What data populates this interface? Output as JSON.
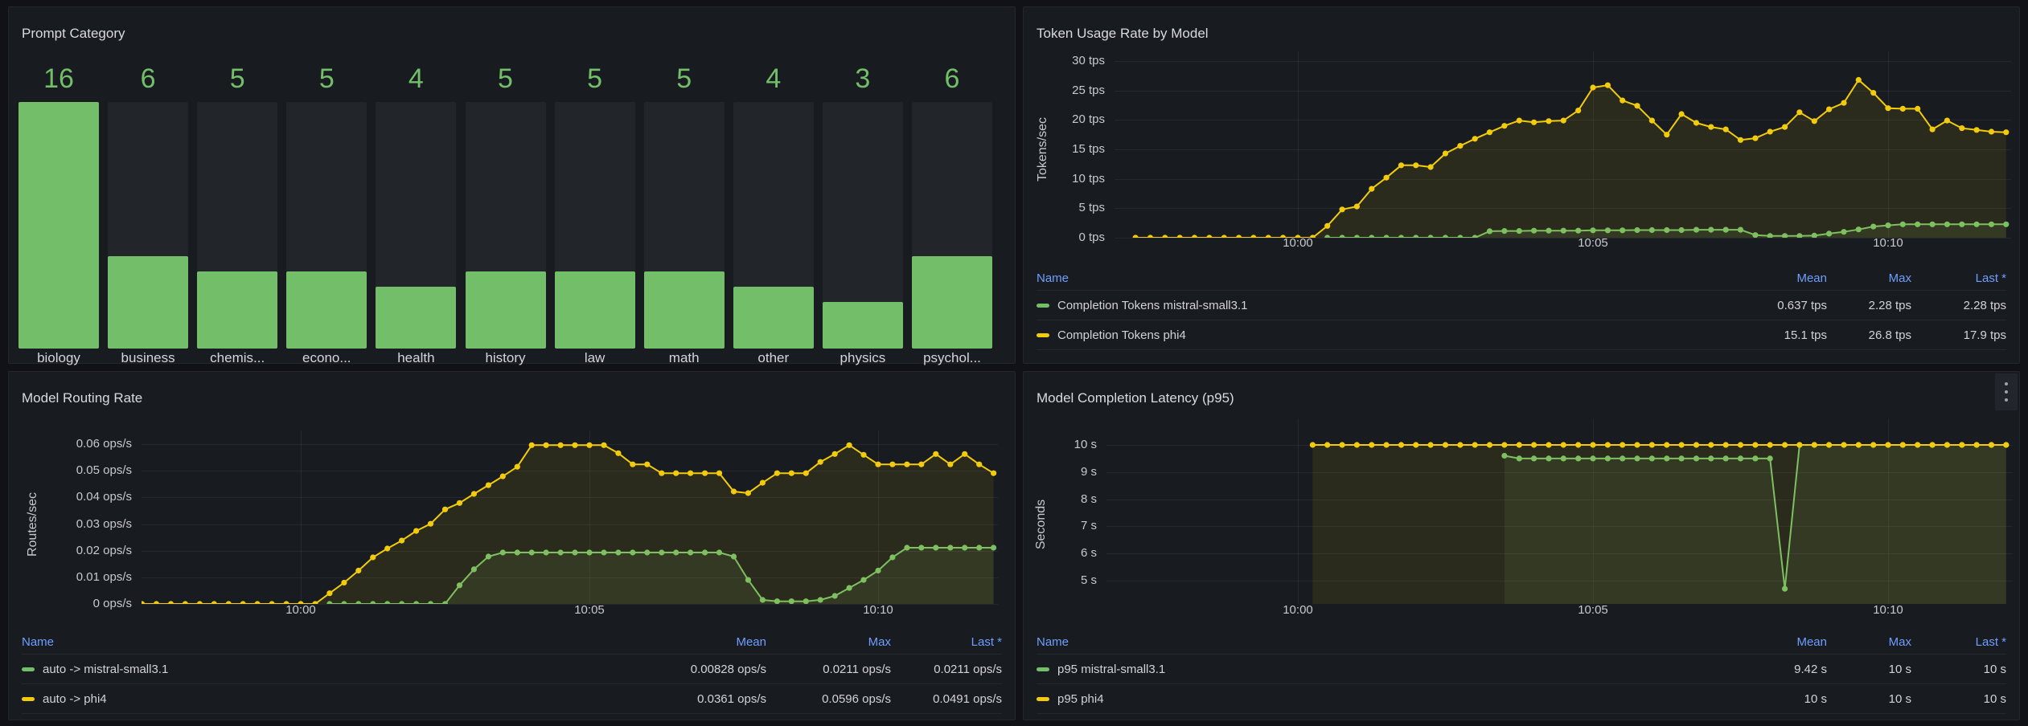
{
  "colors": {
    "green": "#73BF69",
    "yellow": "#F2CC0C",
    "legend_header_blue": "#6E9FFF",
    "panel_bg": "#181b1f",
    "page_bg": "#111217",
    "bar_track": "#22252a"
  },
  "legend_headers": [
    "Name",
    "Mean",
    "Max",
    "Last *"
  ],
  "chart_data": [
    {
      "type": "bar",
      "title": "Prompt Category",
      "categories": [
        "biology",
        "business",
        "chemis...",
        "econo...",
        "health",
        "history",
        "law",
        "math",
        "other",
        "physics",
        "psychol..."
      ],
      "values": [
        16,
        6,
        5,
        5,
        4,
        5,
        5,
        5,
        4,
        3,
        6
      ],
      "ylim": [
        0,
        16
      ],
      "bar_color": "green",
      "value_label_color": "green"
    },
    {
      "type": "line",
      "title": "Token Usage Rate by Model",
      "ylabel": "Tokens/sec",
      "ylim": [
        0,
        30
      ],
      "y_ticks": [
        {
          "v": 0,
          "label": "0 tps"
        },
        {
          "v": 5,
          "label": "5 tps"
        },
        {
          "v": 10,
          "label": "10 tps"
        },
        {
          "v": 15,
          "label": "15 tps"
        },
        {
          "v": 20,
          "label": "20 tps"
        },
        {
          "v": 25,
          "label": "25 tps"
        },
        {
          "v": 30,
          "label": "30 tps"
        }
      ],
      "x_ticks": [
        {
          "t": 0,
          "label": "10:00"
        },
        {
          "t": 5,
          "label": "10:05"
        },
        {
          "t": 10,
          "label": "10:10"
        }
      ],
      "t_start": -2.75,
      "t_step": 0.25,
      "series": [
        {
          "name": "Completion Tokens mistral-small3.1",
          "color": "green",
          "mean": "0.637 tps",
          "max": "2.28 tps",
          "last": "2.28 tps",
          "values": [
            null,
            null,
            null,
            null,
            null,
            null,
            null,
            null,
            null,
            null,
            null,
            null,
            null,
            0,
            0,
            0,
            0,
            0,
            0,
            0,
            0,
            0,
            0,
            0,
            1.1,
            1.15,
            1.15,
            1.2,
            1.2,
            1.2,
            1.2,
            1.25,
            1.25,
            1.25,
            1.3,
            1.3,
            1.3,
            1.3,
            1.35,
            1.35,
            1.35,
            1.35,
            0.45,
            0.3,
            0.3,
            0.3,
            0.35,
            0.7,
            1,
            1.4,
            1.9,
            2.1,
            2.28,
            2.28,
            2.28,
            2.28,
            2.28,
            2.28,
            2.28,
            2.28
          ]
        },
        {
          "name": "Completion Tokens phi4",
          "color": "yellow",
          "mean": "15.1 tps",
          "max": "26.8 tps",
          "last": "17.9 tps",
          "values": [
            0,
            0,
            0,
            0,
            0,
            0,
            0,
            0,
            0,
            0,
            0,
            0,
            0,
            2,
            4.8,
            5.3,
            8.3,
            10.2,
            12.3,
            12.3,
            12,
            14.3,
            15.6,
            16.8,
            17.9,
            19,
            19.9,
            19.6,
            19.8,
            19.9,
            21.6,
            25.5,
            25.9,
            23.3,
            22.4,
            19.9,
            17.5,
            21,
            19.5,
            18.8,
            18.4,
            16.6,
            16.9,
            18,
            18.8,
            21.3,
            19.8,
            21.8,
            22.9,
            26.8,
            24.6,
            22,
            21.9,
            21.9,
            18.4,
            19.9,
            18.6,
            18.3,
            18,
            17.9
          ]
        }
      ]
    },
    {
      "type": "line",
      "title": "Model Routing Rate",
      "ylabel": "Routes/sec",
      "ylim": [
        0,
        0.06
      ],
      "y_ticks": [
        {
          "v": 0,
          "label": "0 ops/s"
        },
        {
          "v": 0.01,
          "label": "0.01 ops/s"
        },
        {
          "v": 0.02,
          "label": "0.02 ops/s"
        },
        {
          "v": 0.03,
          "label": "0.03 ops/s"
        },
        {
          "v": 0.04,
          "label": "0.04 ops/s"
        },
        {
          "v": 0.05,
          "label": "0.05 ops/s"
        },
        {
          "v": 0.06,
          "label": "0.06 ops/s"
        }
      ],
      "x_ticks": [
        {
          "t": 0,
          "label": "10:00"
        },
        {
          "t": 5,
          "label": "10:05"
        },
        {
          "t": 10,
          "label": "10:10"
        }
      ],
      "t_start": -2.75,
      "t_step": 0.25,
      "series": [
        {
          "name": "auto -> mistral-small3.1",
          "color": "green",
          "mean": "0.00828 ops/s",
          "max": "0.0211 ops/s",
          "last": "0.0211 ops/s",
          "values": [
            null,
            null,
            null,
            null,
            null,
            null,
            null,
            null,
            null,
            null,
            null,
            null,
            null,
            0,
            0,
            0,
            0,
            0,
            0,
            0,
            0,
            0,
            0.007,
            0.013,
            0.0178,
            0.0193,
            0.0193,
            0.0193,
            0.0193,
            0.0193,
            0.0193,
            0.0193,
            0.0193,
            0.0193,
            0.0193,
            0.0193,
            0.0193,
            0.0193,
            0.0193,
            0.0193,
            0.0193,
            0.0178,
            0.009,
            0.0015,
            0.001,
            0.001,
            0.001,
            0.0015,
            0.003,
            0.006,
            0.009,
            0.0125,
            0.0175,
            0.0211,
            0.0211,
            0.0211,
            0.0211,
            0.0211,
            0.0211,
            0.0211
          ]
        },
        {
          "name": "auto -> phi4",
          "color": "yellow",
          "mean": "0.0361 ops/s",
          "max": "0.0596 ops/s",
          "last": "0.0491 ops/s",
          "values": [
            0,
            0,
            0,
            0,
            0,
            0,
            0,
            0,
            0,
            0,
            0,
            0,
            0,
            0.004,
            0.008,
            0.0125,
            0.0175,
            0.0208,
            0.0238,
            0.0274,
            0.0301,
            0.0355,
            0.0379,
            0.0413,
            0.0446,
            0.0479,
            0.0515,
            0.0596,
            0.0596,
            0.0596,
            0.0596,
            0.0596,
            0.0596,
            0.0566,
            0.0524,
            0.0524,
            0.0491,
            0.0491,
            0.0491,
            0.0491,
            0.0491,
            0.0422,
            0.0416,
            0.0455,
            0.0491,
            0.0491,
            0.0491,
            0.0533,
            0.0563,
            0.0596,
            0.056,
            0.0524,
            0.0524,
            0.0524,
            0.0524,
            0.0563,
            0.0524,
            0.0563,
            0.0524,
            0.0491
          ]
        }
      ]
    },
    {
      "type": "line",
      "title": "Model Completion Latency (p95)",
      "ylabel": "Seconds",
      "ylim": [
        4.14,
        10
      ],
      "y_ticks": [
        {
          "v": 5,
          "label": "5 s"
        },
        {
          "v": 6,
          "label": "6 s"
        },
        {
          "v": 7,
          "label": "7 s"
        },
        {
          "v": 8,
          "label": "8 s"
        },
        {
          "v": 9,
          "label": "9 s"
        },
        {
          "v": 10,
          "label": "10 s"
        }
      ],
      "x_ticks": [
        {
          "t": 0,
          "label": "10:00"
        },
        {
          "t": 5,
          "label": "10:05"
        },
        {
          "t": 10,
          "label": "10:10"
        }
      ],
      "t_start": -2.75,
      "t_step": 0.25,
      "series": [
        {
          "name": "p95 mistral-small3.1",
          "color": "green",
          "mean": "9.42 s",
          "max": "10 s",
          "last": "10 s",
          "values": [
            null,
            null,
            null,
            null,
            null,
            null,
            null,
            null,
            null,
            null,
            null,
            null,
            null,
            null,
            null,
            null,
            null,
            null,
            null,
            null,
            null,
            null,
            null,
            null,
            null,
            9.6,
            9.5,
            9.5,
            9.5,
            9.5,
            9.5,
            9.5,
            9.5,
            9.5,
            9.5,
            9.5,
            9.5,
            9.5,
            9.5,
            9.5,
            9.5,
            9.5,
            9.5,
            9.5,
            4.7,
            10,
            10,
            10,
            10,
            10,
            10,
            10,
            10,
            10,
            10,
            10,
            10,
            10,
            10,
            10
          ]
        },
        {
          "name": "p95 phi4",
          "color": "yellow",
          "mean": "10 s",
          "max": "10 s",
          "last": "10 s",
          "values": [
            null,
            null,
            null,
            null,
            null,
            null,
            null,
            null,
            null,
            null,
            null,
            null,
            10,
            10,
            10,
            10,
            10,
            10,
            10,
            10,
            10,
            10,
            10,
            10,
            10,
            10,
            10,
            10,
            10,
            10,
            10,
            10,
            10,
            10,
            10,
            10,
            10,
            10,
            10,
            10,
            10,
            10,
            10,
            10,
            10,
            10,
            10,
            10,
            10,
            10,
            10,
            10,
            10,
            10,
            10,
            10,
            10,
            10,
            10,
            10
          ]
        }
      ]
    }
  ]
}
